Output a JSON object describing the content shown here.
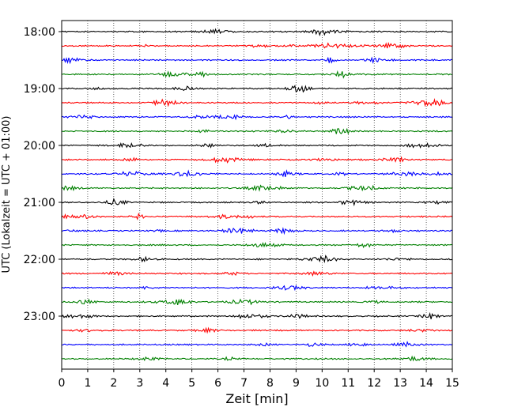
{
  "chart_data": {
    "type": "line",
    "title": "",
    "xlabel": "Zeit  [min]",
    "ylabel": "UTC (Lokalzeit = UTC + 01:00)",
    "xlim": [
      0,
      15
    ],
    "x_ticks": [
      0,
      1,
      2,
      3,
      4,
      5,
      6,
      7,
      8,
      9,
      10,
      11,
      12,
      13,
      14,
      15
    ],
    "y_tick_labels": [
      "18:00",
      "19:00",
      "20:00",
      "21:00",
      "22:00",
      "23:00"
    ],
    "grid": "vertical dotted lines at each minute",
    "trace_interval_minutes": 15,
    "first_trace": "18:00",
    "trace_count": 24,
    "trace_colors": [
      "#000000",
      "#ff0000",
      "#0000ff",
      "#008000"
    ],
    "series": [
      {
        "start": "18:00"
      },
      {
        "start": "18:15"
      },
      {
        "start": "18:30"
      },
      {
        "start": "18:45"
      },
      {
        "start": "19:00"
      },
      {
        "start": "19:15"
      },
      {
        "start": "19:30"
      },
      {
        "start": "19:45"
      },
      {
        "start": "20:00"
      },
      {
        "start": "20:15"
      },
      {
        "start": "20:30"
      },
      {
        "start": "20:45"
      },
      {
        "start": "21:00"
      },
      {
        "start": "21:15"
      },
      {
        "start": "21:30"
      },
      {
        "start": "21:45"
      },
      {
        "start": "22:00"
      },
      {
        "start": "22:15"
      },
      {
        "start": "22:30"
      },
      {
        "start": "22:45"
      },
      {
        "start": "23:00"
      },
      {
        "start": "23:15"
      },
      {
        "start": "23:30"
      },
      {
        "start": "23:45"
      }
    ]
  }
}
